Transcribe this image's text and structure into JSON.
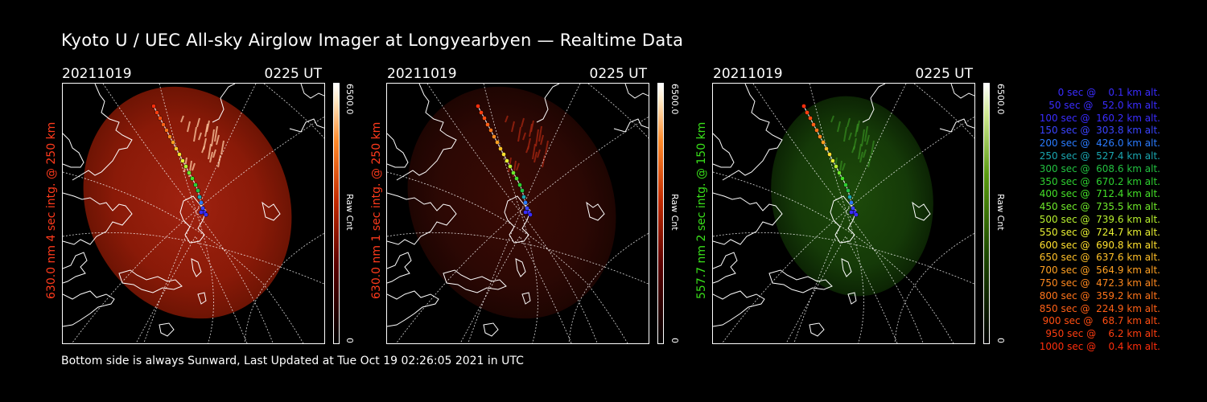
{
  "title": "Kyoto U / UEC All-sky Airglow Imager at Longyearbyen — Realtime Data",
  "footer": "Bottom side is always Sunward, Last Updated at Tue Oct 19 02:26:05 2021 in UTC",
  "panels": [
    {
      "date": "20211019",
      "time": "0225 UT",
      "side_label": "630.0 nm  4 sec intg. @ 250 km",
      "side_label_color": "#ff3a1c",
      "colorbar_max": "6500.0",
      "colorbar_min": "0",
      "colorbar_unit": "Raw Cnt",
      "palette": "red",
      "intensity": 0.75
    },
    {
      "date": "20211019",
      "time": "0225 UT",
      "side_label": "630.0 nm  1 sec intg. @ 250 km",
      "side_label_color": "#ff3a1c",
      "colorbar_max": "6500.0",
      "colorbar_min": "0",
      "colorbar_unit": "Raw Cnt",
      "palette": "red",
      "intensity": 0.18
    },
    {
      "date": "20211019",
      "time": "0225 UT",
      "side_label": "557.7 nm  2 sec intg. @ 150 km",
      "side_label_color": "#39e01a",
      "colorbar_max": "6500.0",
      "colorbar_min": "0",
      "colorbar_unit": "Raw Cnt",
      "palette": "green",
      "intensity": 0.22
    }
  ],
  "legend": [
    {
      "text": "   0 sec @    0.1 km alt.",
      "color": "#3a2cff"
    },
    {
      "text": "  50 sec @   52.0 km alt.",
      "color": "#3a2cff"
    },
    {
      "text": " 100 sec @  160.2 km alt.",
      "color": "#3a2cff"
    },
    {
      "text": " 150 sec @  303.8 km alt.",
      "color": "#3a44ff"
    },
    {
      "text": " 200 sec @  426.0 km alt.",
      "color": "#2a7cff"
    },
    {
      "text": " 250 sec @  527.4 km alt.",
      "color": "#1aa6b0"
    },
    {
      "text": " 300 sec @  608.6 km alt.",
      "color": "#22c040"
    },
    {
      "text": " 350 sec @  670.2 km alt.",
      "color": "#2ed030"
    },
    {
      "text": " 400 sec @  712.4 km alt.",
      "color": "#44e028"
    },
    {
      "text": " 450 sec @  735.5 km alt.",
      "color": "#6ee82a"
    },
    {
      "text": " 500 sec @  739.6 km alt.",
      "color": "#b8f02e"
    },
    {
      "text": " 550 sec @  724.7 km alt.",
      "color": "#e8f032"
    },
    {
      "text": " 600 sec @  690.8 km alt.",
      "color": "#ffe02e"
    },
    {
      "text": " 650 sec @  637.6 km alt.",
      "color": "#ffc028"
    },
    {
      "text": " 700 sec @  564.9 km alt.",
      "color": "#ffa022"
    },
    {
      "text": " 750 sec @  472.3 km alt.",
      "color": "#ff881e"
    },
    {
      "text": " 800 sec @  359.2 km alt.",
      "color": "#ff741a"
    },
    {
      "text": " 850 sec @  224.9 km alt.",
      "color": "#ff6016"
    },
    {
      "text": " 900 sec @   68.7 km alt.",
      "color": "#ff4e12"
    },
    {
      "text": " 950 sec @    6.2 km alt.",
      "color": "#ff3e10"
    },
    {
      "text": "1000 sec @    0.4 km alt.",
      "color": "#ff2e0c"
    }
  ]
}
